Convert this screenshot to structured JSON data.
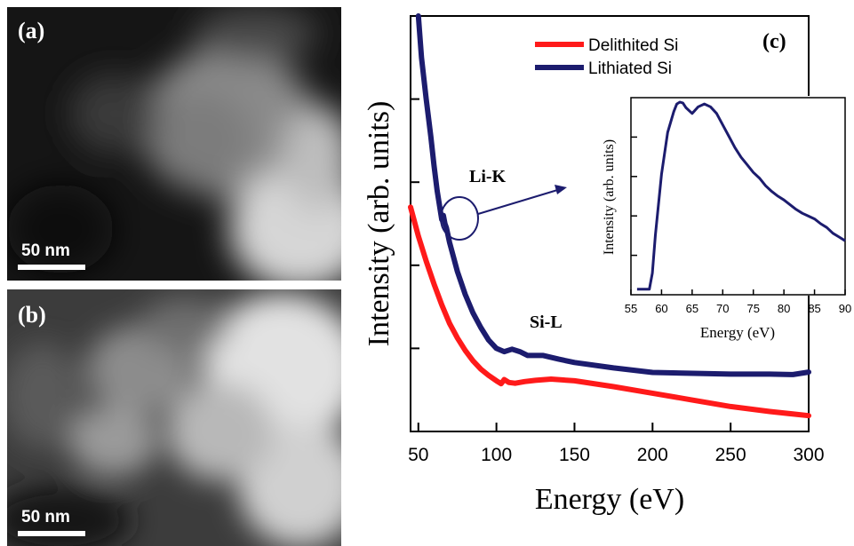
{
  "panel_a": {
    "label": "(a)",
    "scale_bar": "50 nm"
  },
  "panel_b": {
    "label": "(b)",
    "scale_bar": "50 nm"
  },
  "chart_data": [
    {
      "type": "line",
      "panel_label": "(c)",
      "xlabel": "Energy (eV)",
      "ylabel": "Intensity (arb. units)",
      "xlim": [
        45,
        300
      ],
      "ylim": [
        0,
        100
      ],
      "xticks": [
        50,
        100,
        150,
        200,
        250,
        300
      ],
      "y_tick_labels_shown": false,
      "legend_position": "top-right",
      "annotations": [
        "Li-K",
        "Si-L"
      ],
      "colors": {
        "Delithited Si": "#ff1a1a",
        "Lithiated Si": "#1c1c6e"
      },
      "series": [
        {
          "name": "Delithited Si",
          "x": [
            45,
            50,
            55,
            60,
            65,
            70,
            75,
            80,
            85,
            90,
            95,
            100,
            103,
            105,
            108,
            112,
            118,
            125,
            135,
            150,
            175,
            200,
            225,
            250,
            275,
            300
          ],
          "values": [
            54,
            47,
            41,
            35.5,
            30.5,
            26,
            22.5,
            19.5,
            17,
            15,
            13.5,
            12.2,
            11.5,
            12.5,
            11.8,
            11.6,
            12,
            12.3,
            12.6,
            12.2,
            10.8,
            9.2,
            7.6,
            6,
            4.8,
            3.8
          ]
        },
        {
          "name": "Lithiated Si",
          "x": [
            50,
            52,
            55,
            58,
            60,
            62,
            65,
            66,
            67,
            68,
            70,
            75,
            80,
            85,
            90,
            95,
            100,
            105,
            110,
            115,
            120,
            130,
            140,
            150,
            175,
            200,
            250,
            275,
            290,
            300
          ],
          "values": [
            100,
            90,
            80,
            71,
            64,
            58,
            51,
            52,
            50,
            49,
            45.5,
            38.5,
            33,
            28.5,
            25,
            22,
            20,
            19.2,
            19.8,
            19.2,
            18.3,
            18.3,
            17.4,
            16.6,
            15.3,
            14.2,
            13.8,
            13.8,
            13.7,
            14.3
          ]
        }
      ]
    },
    {
      "type": "line",
      "xlabel": "Energy (eV)",
      "ylabel": "Intensity (arb. units)",
      "xlim": [
        55,
        90
      ],
      "xticks": [
        55,
        60,
        65,
        70,
        75,
        80,
        85,
        90
      ],
      "y_tick_labels_shown": false,
      "series": [
        {
          "x": [
            56,
            57,
            58,
            58.5,
            59,
            60,
            61,
            62,
            62.5,
            63,
            63.5,
            64,
            65,
            66,
            67,
            68,
            69,
            70,
            71,
            72,
            73,
            74,
            75,
            76,
            77,
            78,
            79,
            80,
            81,
            82,
            83,
            84,
            85,
            86,
            87,
            88,
            89,
            90
          ],
          "values": [
            1.5,
            1.5,
            1.5,
            10,
            30,
            62,
            84,
            95,
            99,
            100,
            99.5,
            97,
            94,
            97.5,
            99,
            97.5,
            94,
            88,
            82,
            76,
            71,
            67,
            63,
            60,
            56,
            53,
            50.5,
            48.5,
            46,
            43.5,
            41.5,
            40,
            38.5,
            36,
            34,
            31,
            29,
            27
          ]
        }
      ]
    }
  ]
}
